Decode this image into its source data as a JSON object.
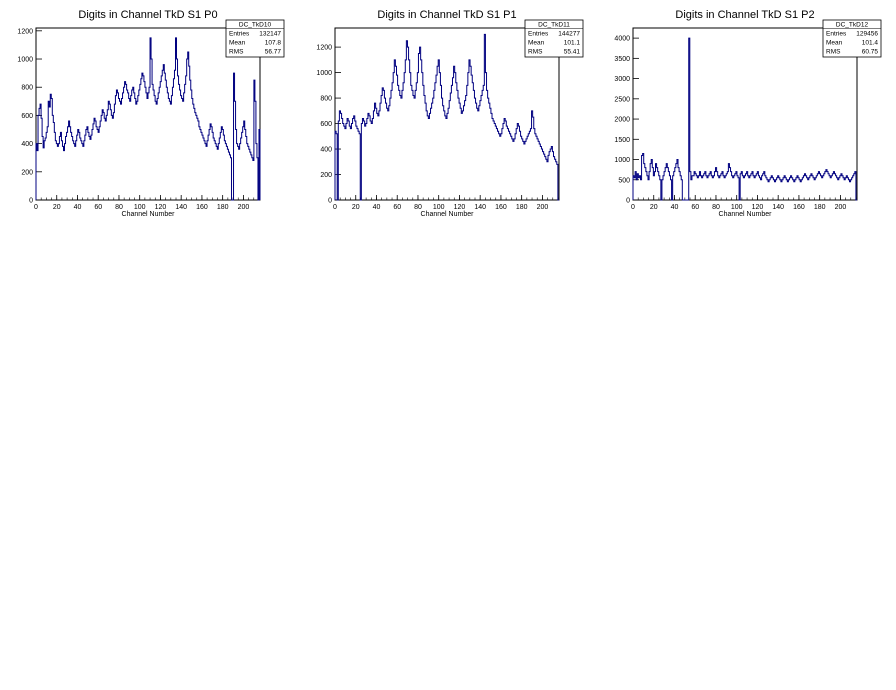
{
  "chart_data": [
    {
      "type": "histogram",
      "title": "Digits in Channel TkD S1 P0",
      "xlabel": "Channel Number",
      "ylabel": "",
      "xlim": [
        0,
        216
      ],
      "ylim": [
        0,
        1220
      ],
      "xticks": [
        0,
        20,
        40,
        60,
        80,
        100,
        120,
        140,
        160,
        180,
        200
      ],
      "yticks": [
        0,
        200,
        400,
        600,
        800,
        1000,
        1200
      ],
      "line_color": "#000080",
      "stats": {
        "name": "DC_TkD10",
        "rows": [
          {
            "label": "Entries",
            "value": "132147"
          },
          {
            "label": "Mean",
            "value": "107.8"
          },
          {
            "label": "RMS",
            "value": "56.77"
          }
        ]
      },
      "values": [
        400,
        350,
        600,
        650,
        680,
        580,
        450,
        370,
        420,
        440,
        480,
        520,
        700,
        660,
        750,
        720,
        600,
        550,
        480,
        420,
        400,
        380,
        400,
        450,
        480,
        420,
        380,
        350,
        400,
        450,
        480,
        520,
        560,
        520,
        480,
        450,
        420,
        400,
        380,
        420,
        460,
        500,
        480,
        440,
        420,
        400,
        380,
        420,
        460,
        500,
        520,
        480,
        450,
        430,
        460,
        500,
        540,
        580,
        560,
        520,
        500,
        480,
        520,
        560,
        600,
        640,
        620,
        580,
        560,
        600,
        640,
        700,
        680,
        640,
        600,
        580,
        620,
        680,
        740,
        780,
        760,
        720,
        700,
        680,
        720,
        760,
        800,
        840,
        820,
        780,
        760,
        720,
        700,
        740,
        780,
        800,
        760,
        720,
        680,
        700,
        740,
        780,
        820,
        860,
        900,
        880,
        840,
        800,
        760,
        720,
        760,
        800,
        1150,
        1000,
        820,
        780,
        740,
        700,
        680,
        720,
        760,
        800,
        840,
        880,
        920,
        960,
        900,
        850,
        800,
        760,
        720,
        700,
        680,
        740,
        800,
        860,
        920,
        1150,
        1000,
        880,
        820,
        780,
        740,
        720,
        700,
        760,
        820,
        880,
        1000,
        1050,
        950,
        850,
        780,
        720,
        680,
        650,
        620,
        600,
        580,
        560,
        520,
        500,
        480,
        460,
        440,
        420,
        400,
        380,
        420,
        460,
        500,
        540,
        520,
        480,
        440,
        420,
        400,
        380,
        360,
        400,
        440,
        480,
        520,
        500,
        460,
        420,
        400,
        380,
        360,
        340,
        320,
        300,
        0,
        0,
        900,
        700,
        500,
        400,
        380,
        360,
        400,
        440,
        480,
        520,
        560,
        500,
        450,
        400,
        380,
        360,
        340,
        320,
        300,
        280,
        850,
        700,
        400,
        300,
        0,
        500
      ]
    },
    {
      "type": "histogram",
      "title": "Digits in Channel TkD S1 P1",
      "xlabel": "Channel Number",
      "ylabel": "",
      "xlim": [
        0,
        216
      ],
      "ylim": [
        0,
        1350
      ],
      "xticks": [
        0,
        20,
        40,
        60,
        80,
        100,
        120,
        140,
        160,
        180,
        200
      ],
      "yticks": [
        0,
        200,
        400,
        600,
        800,
        1000,
        1200
      ],
      "line_color": "#000080",
      "stats": {
        "name": "DC_TkD11",
        "rows": [
          {
            "label": "Entries",
            "value": "144277"
          },
          {
            "label": "Mean",
            "value": "101.1"
          },
          {
            "label": "RMS",
            "value": "55.41"
          }
        ]
      },
      "values": [
        540,
        520,
        0,
        620,
        700,
        680,
        640,
        600,
        580,
        560,
        600,
        640,
        620,
        580,
        560,
        600,
        640,
        660,
        620,
        580,
        560,
        540,
        520,
        0,
        600,
        640,
        620,
        580,
        600,
        640,
        680,
        660,
        620,
        600,
        640,
        700,
        760,
        720,
        680,
        660,
        700,
        760,
        820,
        880,
        860,
        800,
        760,
        720,
        700,
        740,
        800,
        860,
        920,
        1000,
        1100,
        1050,
        980,
        900,
        860,
        820,
        800,
        860,
        920,
        1000,
        1100,
        1250,
        1200,
        1100,
        1000,
        900,
        860,
        820,
        800,
        860,
        920,
        1000,
        1150,
        1200,
        1100,
        1000,
        900,
        820,
        760,
        700,
        660,
        640,
        680,
        720,
        760,
        800,
        860,
        920,
        980,
        1050,
        1100,
        1000,
        900,
        800,
        740,
        700,
        660,
        640,
        680,
        720,
        780,
        840,
        900,
        960,
        1050,
        1000,
        920,
        860,
        800,
        760,
        720,
        680,
        700,
        740,
        780,
        820,
        900,
        1000,
        1100,
        1050,
        980,
        920,
        860,
        800,
        760,
        720,
        700,
        740,
        780,
        820,
        860,
        900,
        1300,
        1000,
        860,
        800,
        760,
        720,
        680,
        640,
        620,
        600,
        580,
        560,
        540,
        520,
        500,
        520,
        560,
        600,
        640,
        620,
        580,
        560,
        540,
        520,
        500,
        480,
        460,
        480,
        520,
        560,
        600,
        580,
        540,
        500,
        480,
        460,
        440,
        460,
        480,
        500,
        520,
        540,
        560,
        700,
        650,
        560,
        520,
        500,
        480,
        460,
        440,
        420,
        400,
        380,
        360,
        340,
        320,
        300,
        350,
        380,
        400,
        420,
        380,
        340,
        320,
        300,
        280,
        0
      ]
    },
    {
      "type": "histogram",
      "title": "Digits in Channel TkD S1 P2",
      "xlabel": "Channel Number",
      "ylabel": "",
      "xlim": [
        0,
        216
      ],
      "ylim": [
        0,
        4250
      ],
      "xticks": [
        0,
        20,
        40,
        60,
        80,
        100,
        120,
        140,
        160,
        180,
        200
      ],
      "yticks": [
        0,
        500,
        1000,
        1500,
        2000,
        2500,
        3000,
        3500,
        4000
      ],
      "line_color": "#000080",
      "stats": {
        "name": "DC_TkD12",
        "rows": [
          {
            "label": "Entries",
            "value": "129456"
          },
          {
            "label": "Mean",
            "value": "101.4"
          },
          {
            "label": "RMS",
            "value": "60.75"
          }
        ]
      },
      "values": [
        600,
        550,
        700,
        500,
        650,
        550,
        600,
        500,
        1100,
        1150,
        900,
        800,
        700,
        600,
        500,
        700,
        900,
        1000,
        800,
        600,
        700,
        900,
        800,
        700,
        600,
        500,
        0,
        500,
        600,
        700,
        800,
        900,
        800,
        700,
        600,
        500,
        0,
        600,
        700,
        800,
        900,
        1000,
        800,
        700,
        600,
        500,
        0,
        0,
        0,
        0,
        0,
        0,
        4000,
        700,
        500,
        600,
        600,
        700,
        650,
        600,
        550,
        600,
        700,
        600,
        550,
        600,
        650,
        700,
        600,
        550,
        600,
        650,
        700,
        600,
        550,
        600,
        700,
        800,
        700,
        600,
        550,
        600,
        650,
        700,
        600,
        550,
        600,
        650,
        700,
        900,
        800,
        700,
        600,
        550,
        600,
        650,
        700,
        600,
        550,
        0,
        650,
        700,
        600,
        550,
        600,
        650,
        700,
        600,
        550,
        600,
        650,
        700,
        600,
        550,
        600,
        650,
        700,
        600,
        550,
        500,
        600,
        650,
        700,
        600,
        550,
        500,
        450,
        500,
        550,
        600,
        550,
        500,
        450,
        500,
        550,
        600,
        550,
        500,
        450,
        500,
        550,
        600,
        550,
        500,
        450,
        500,
        550,
        600,
        550,
        500,
        450,
        500,
        550,
        600,
        550,
        500,
        450,
        500,
        550,
        600,
        650,
        600,
        550,
        500,
        550,
        600,
        650,
        600,
        550,
        500,
        550,
        600,
        650,
        700,
        650,
        600,
        550,
        600,
        650,
        700,
        750,
        700,
        650,
        600,
        550,
        600,
        650,
        700,
        650,
        600,
        550,
        500,
        550,
        600,
        650,
        600,
        550,
        500,
        550,
        600,
        550,
        500,
        450,
        500,
        550,
        600,
        650,
        700,
        0
      ]
    }
  ]
}
